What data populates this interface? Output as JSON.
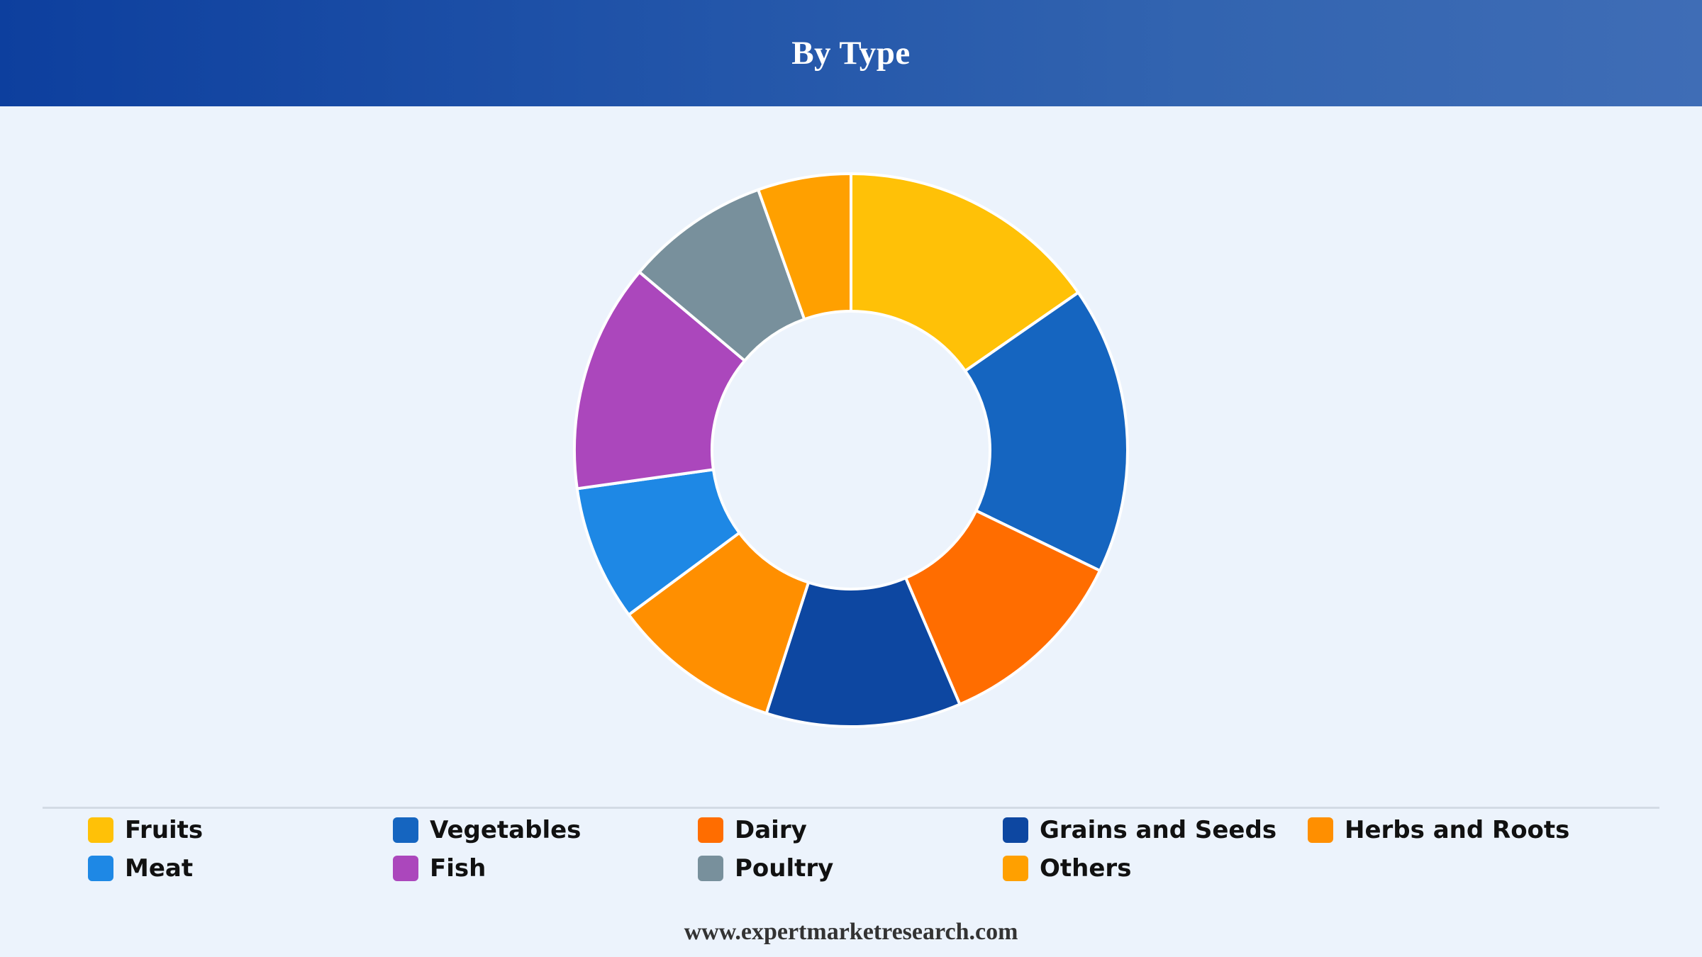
{
  "header": {
    "title": "By Type"
  },
  "footer": {
    "text": "www.expertmarketresearch.com"
  },
  "chart_data": {
    "type": "pie",
    "variant": "donut",
    "title": "By Type",
    "categories": [
      "Fruits",
      "Vegetables",
      "Dairy",
      "Grains and Seeds",
      "Herbs and Roots",
      "Meat",
      "Fish",
      "Poultry",
      "Others"
    ],
    "values": [
      15.5,
      17.0,
      11.5,
      11.5,
      10.0,
      8.0,
      13.5,
      8.5,
      5.5
    ],
    "colors": [
      "#ffc107",
      "#1565c0",
      "#ff6d00",
      "#0d47a1",
      "#ff8f00",
      "#1e88e5",
      "#ab47bc",
      "#78909c",
      "#ffa000"
    ],
    "legend_position": "bottom"
  }
}
